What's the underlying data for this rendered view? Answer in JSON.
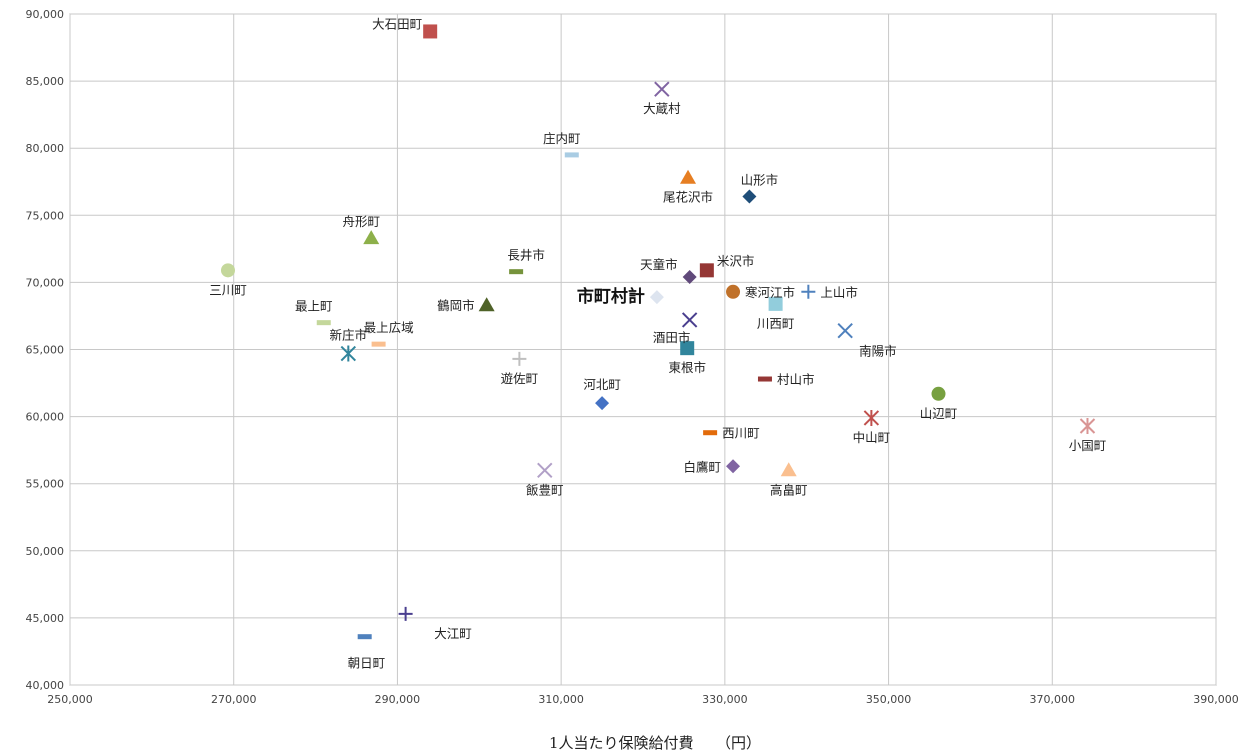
{
  "chart_data": {
    "type": "scatter",
    "title": "",
    "xlabel": "1人当たり保険給付費　　（円）",
    "ylabel": "",
    "xlim": [
      250000,
      390000
    ],
    "ylim": [
      40000,
      90000
    ],
    "x_ticks": [
      "250,000",
      "270,000",
      "290,000",
      "310,000",
      "330,000",
      "350,000",
      "370,000",
      "390,000"
    ],
    "y_ticks": [
      "40,000",
      "45,000",
      "50,000",
      "55,000",
      "60,000",
      "65,000",
      "70,000",
      "75,000",
      "80,000",
      "85,000",
      "90,000"
    ],
    "x_tick_values": [
      250000,
      270000,
      290000,
      310000,
      330000,
      350000,
      370000,
      390000
    ],
    "y_tick_values": [
      40000,
      45000,
      50000,
      55000,
      60000,
      65000,
      70000,
      75000,
      80000,
      85000,
      90000
    ],
    "grid": true,
    "legend": "none",
    "points": [
      {
        "label": "大石田町",
        "x": 294000,
        "y": 88700,
        "marker": "square",
        "color": "#c0504d",
        "label_pos": "left-top"
      },
      {
        "label": "大蔵村",
        "x": 322300,
        "y": 84400,
        "marker": "x",
        "color": "#8064a2",
        "label_pos": "below"
      },
      {
        "label": "庄内町",
        "x": 311300,
        "y": 79500,
        "marker": "dash",
        "color": "#a9cce3",
        "label_pos": "above-left"
      },
      {
        "label": "尾花沢市",
        "x": 325500,
        "y": 77800,
        "marker": "triangle",
        "color": "#e67e22",
        "label_pos": "below"
      },
      {
        "label": "山形市",
        "x": 333000,
        "y": 76400,
        "marker": "diamond",
        "color": "#1f4e79",
        "label_pos": "above-right"
      },
      {
        "label": "舟形町",
        "x": 286800,
        "y": 73300,
        "marker": "triangle",
        "color": "#8db04a",
        "label_pos": "above-left"
      },
      {
        "label": "三川町",
        "x": 269300,
        "y": 70900,
        "marker": "circle",
        "color": "#c4d79b",
        "label_pos": "below"
      },
      {
        "label": "長井市",
        "x": 304500,
        "y": 70800,
        "marker": "dash",
        "color": "#76933c",
        "label_pos": "above-right"
      },
      {
        "label": "米沢市",
        "x": 327800,
        "y": 70900,
        "marker": "square",
        "color": "#953735",
        "label_pos": "right-above"
      },
      {
        "label": "天童市",
        "x": 325700,
        "y": 70400,
        "marker": "diamond",
        "color": "#60497a",
        "label_pos": "left-above"
      },
      {
        "label": "寒河江市",
        "x": 331000,
        "y": 69300,
        "marker": "circle",
        "color": "#c0712a",
        "label_pos": "right"
      },
      {
        "label": "上山市",
        "x": 340200,
        "y": 69300,
        "marker": "plus",
        "color": "#4f81bd",
        "label_pos": "right"
      },
      {
        "label": "市町村計",
        "x": 321700,
        "y": 68900,
        "marker": "diamond",
        "color": "#dde4ef",
        "label_pos": "left",
        "bold": true
      },
      {
        "label": "鶴岡市",
        "x": 300900,
        "y": 68300,
        "marker": "triangle",
        "color": "#4f6228",
        "label_pos": "left"
      },
      {
        "label": "川西町",
        "x": 336200,
        "y": 68400,
        "marker": "square",
        "color": "#92cddc",
        "label_pos": "below"
      },
      {
        "label": "最上町",
        "x": 281000,
        "y": 67000,
        "marker": "dash",
        "color": "#c4d79b",
        "label_pos": "above-left"
      },
      {
        "label": "酒田市",
        "x": 325700,
        "y": 67200,
        "marker": "x",
        "color": "#4a3f8f",
        "label_pos": "below-left"
      },
      {
        "label": "南陽市",
        "x": 344700,
        "y": 66400,
        "marker": "x",
        "color": "#4f81bd",
        "label_pos": "below-right"
      },
      {
        "label": "最上広域",
        "x": 287700,
        "y": 65400,
        "marker": "dash",
        "color": "#fabf8f",
        "label_pos": "above-right"
      },
      {
        "label": "新庄市",
        "x": 284000,
        "y": 64700,
        "marker": "asterisk",
        "color": "#31859c",
        "label_pos": "above"
      },
      {
        "label": "東根市",
        "x": 325400,
        "y": 65100,
        "marker": "square",
        "color": "#31859c",
        "label_pos": "below"
      },
      {
        "label": "遊佐町",
        "x": 304900,
        "y": 64300,
        "marker": "plus",
        "color": "#bfbfbf",
        "label_pos": "below"
      },
      {
        "label": "村山市",
        "x": 334900,
        "y": 62800,
        "marker": "dash",
        "color": "#953735",
        "label_pos": "right"
      },
      {
        "label": "山辺町",
        "x": 356100,
        "y": 61700,
        "marker": "circle",
        "color": "#77a040",
        "label_pos": "below"
      },
      {
        "label": "河北町",
        "x": 315000,
        "y": 61000,
        "marker": "diamond",
        "color": "#4472c4",
        "label_pos": "above"
      },
      {
        "label": "中山町",
        "x": 347900,
        "y": 59900,
        "marker": "asterisk",
        "color": "#c0504d",
        "label_pos": "below"
      },
      {
        "label": "小国町",
        "x": 374300,
        "y": 59300,
        "marker": "asterisk",
        "color": "#d99594",
        "label_pos": "below"
      },
      {
        "label": "西川町",
        "x": 328200,
        "y": 58800,
        "marker": "dash",
        "color": "#e26b0a",
        "label_pos": "right"
      },
      {
        "label": "白鷹町",
        "x": 331000,
        "y": 56300,
        "marker": "diamond",
        "color": "#8064a2",
        "label_pos": "left"
      },
      {
        "label": "高畠町",
        "x": 337800,
        "y": 56000,
        "marker": "triangle",
        "color": "#fabf8f",
        "label_pos": "below"
      },
      {
        "label": "飯豊町",
        "x": 308000,
        "y": 56000,
        "marker": "x",
        "color": "#b1a0c7",
        "label_pos": "below"
      },
      {
        "label": "大江町",
        "x": 291000,
        "y": 45300,
        "marker": "plus",
        "color": "#4a3f8f",
        "label_pos": "none"
      },
      {
        "label": "朝日町",
        "x": 286000,
        "y": 43600,
        "marker": "dash",
        "color": "#4f81bd",
        "label_pos": "none"
      }
    ],
    "extra_labels": [
      {
        "text": "大江町",
        "x": 294500,
        "y": 43800
      },
      {
        "text": "朝日町",
        "x": 286200,
        "y": 41600
      }
    ]
  }
}
